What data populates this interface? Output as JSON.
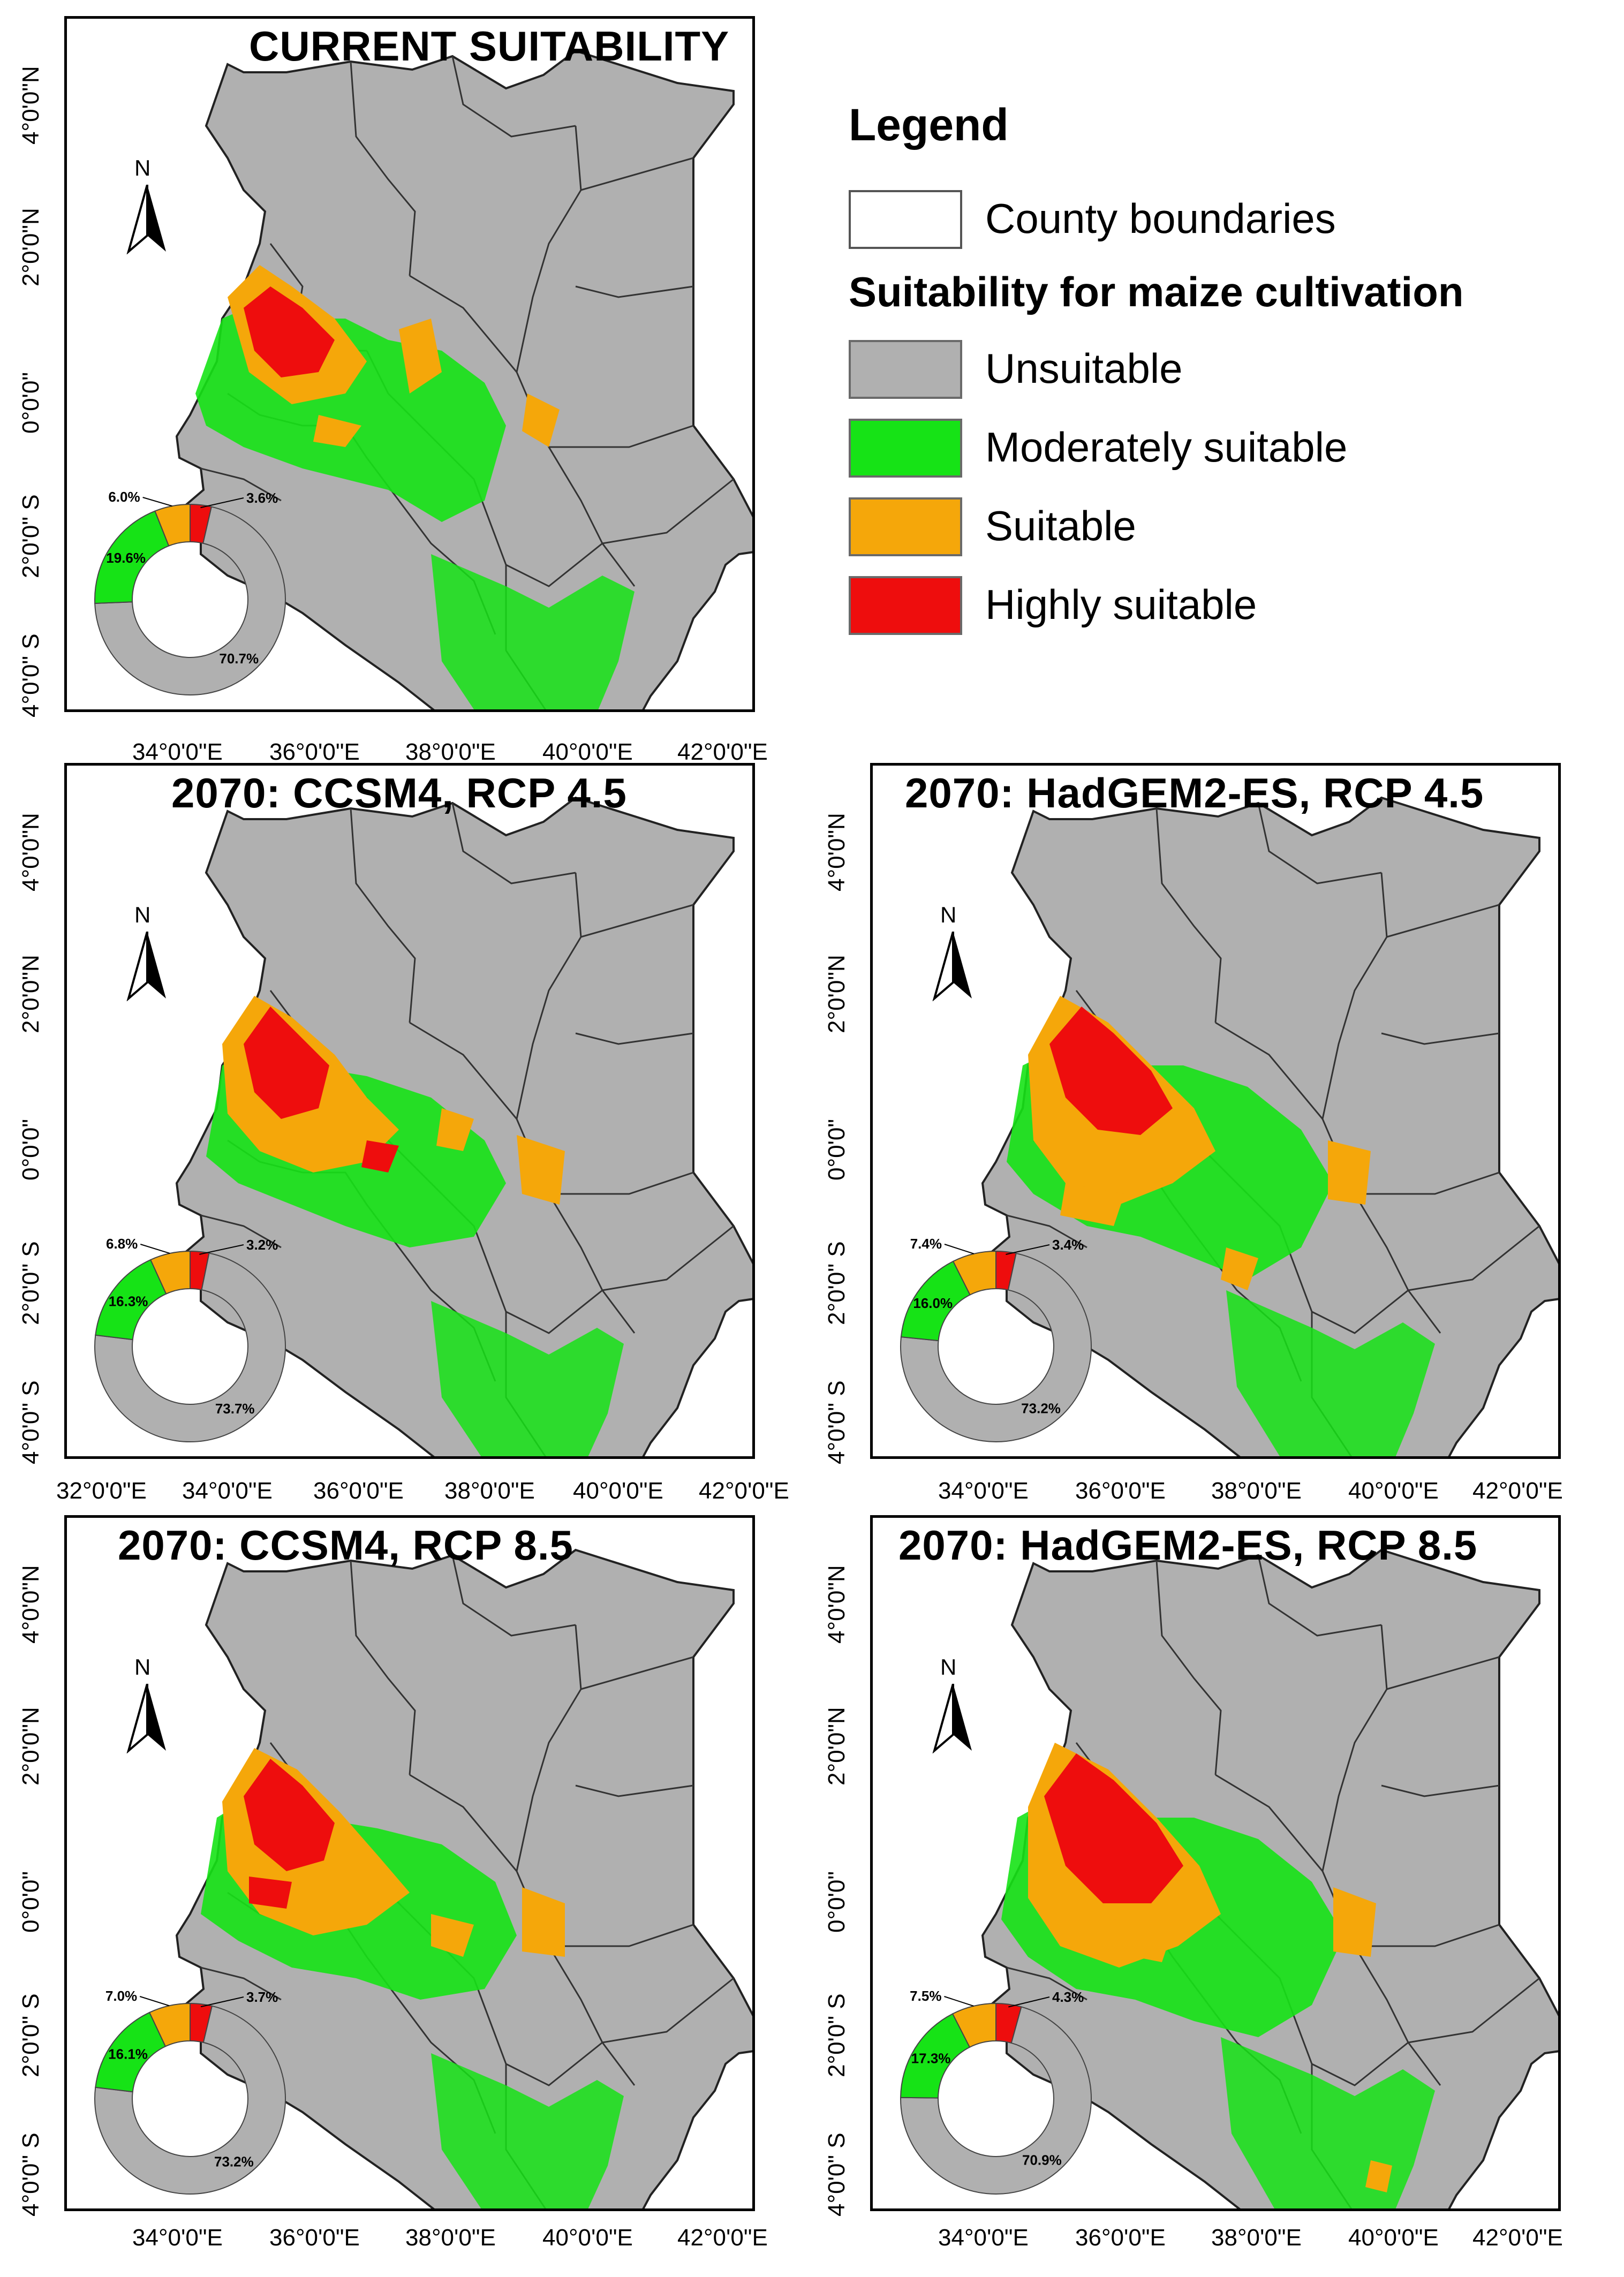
{
  "panels": [
    {
      "id": "current",
      "title": "CURRENT SUITABILITY",
      "donut": {
        "unsuitable": 70.7,
        "moderately": 19.6,
        "suitable": 6.0,
        "highly": 3.6
      },
      "donut_labels": {
        "unsuitable": "70.7%",
        "moderately": "19.6%",
        "suitable": "6.0%",
        "highly": "3.6%"
      }
    },
    {
      "id": "ccsm4-45",
      "title": "2070: CCSM4, RCP 4.5",
      "donut": {
        "unsuitable": 73.7,
        "moderately": 16.3,
        "suitable": 6.8,
        "highly": 3.2
      },
      "donut_labels": {
        "unsuitable": "73.7%",
        "moderately": "16.3%",
        "suitable": "6.8%",
        "highly": "3.2%"
      }
    },
    {
      "id": "hadgem-45",
      "title": "2070: HadGEM2-ES, RCP 4.5",
      "donut": {
        "unsuitable": 73.2,
        "moderately": 16.0,
        "suitable": 7.4,
        "highly": 3.4
      },
      "donut_labels": {
        "unsuitable": "73.2%",
        "moderately": "16.0%",
        "suitable": "7.4%",
        "highly": "3.4%"
      }
    },
    {
      "id": "ccsm4-85",
      "title": "2070: CCSM4, RCP 8.5",
      "donut": {
        "unsuitable": 73.2,
        "moderately": 16.1,
        "suitable": 7.0,
        "highly": 3.7
      },
      "donut_labels": {
        "unsuitable": "73.2%",
        "moderately": "16.1%",
        "suitable": "7.0%",
        "highly": "3.7%"
      }
    },
    {
      "id": "hadgem-85",
      "title": "2070: HadGEM2-ES, RCP 8.5",
      "donut": {
        "unsuitable": 70.9,
        "moderately": 17.3,
        "suitable": 7.5,
        "highly": 4.3
      },
      "donut_labels": {
        "unsuitable": "70.9%",
        "moderately": "17.3%",
        "suitable": "7.5%",
        "highly": "4.3%"
      }
    }
  ],
  "axes": {
    "lat_labels": [
      "4°0'0\"N",
      "2°0'0\"N",
      "0°0'0\"",
      "2°0'0\" S",
      "4°0'0\" S"
    ],
    "lon_labels": [
      "32°0'0\"E",
      "34°0'0\"E",
      "36°0'0\"E",
      "38°0'0\"E",
      "40°0'0\"E",
      "42°0'0\"E"
    ]
  },
  "north_label": "N",
  "legend": {
    "title": "Legend",
    "boundary_label": "County boundaries",
    "suitability_title": "Suitability for maize cultivation",
    "classes": [
      {
        "key": "unsuitable",
        "label": "Unsuitable",
        "color": "#b0b0b0"
      },
      {
        "key": "moderately",
        "label": "Moderately suitable",
        "color": "#16e316"
      },
      {
        "key": "suitable",
        "label": "Suitable",
        "color": "#f5a70a"
      },
      {
        "key": "highly",
        "label": "Highly suitable",
        "color": "#ee0d0d"
      }
    ]
  }
}
